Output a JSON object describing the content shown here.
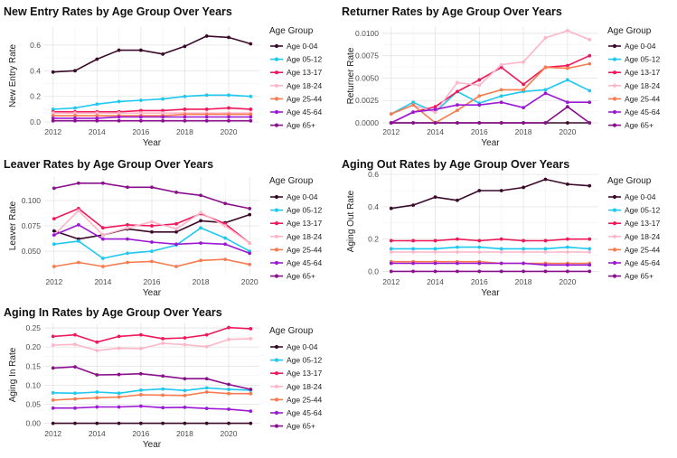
{
  "legend_title": "Age Group",
  "groups": [
    "Age 0-04",
    "Age 05-12",
    "Age 13-17",
    "Age 18-24",
    "Age 25-44",
    "Age 45-64",
    "Age 65+"
  ],
  "colors": [
    "#3b0a2a",
    "#1ec8f0",
    "#f0185a",
    "#ffb6c8",
    "#f77b4f",
    "#9b19d4",
    "#8a0f8c"
  ],
  "chart_data": [
    {
      "type": "line",
      "title": "New Entry Rates by Age Group Over Years",
      "xlabel": "Year",
      "ylabel": "New Entry Rate",
      "xlim": [
        2011.6,
        2021.4
      ],
      "ylim": [
        -0.02,
        0.74
      ],
      "xticks": [
        2012,
        2014,
        2016,
        2018,
        2020
      ],
      "yticks": [
        0.0,
        0.2,
        0.4,
        0.6
      ],
      "ytick_labels": [
        "0.0",
        "0.2",
        "0.4",
        "0.6"
      ],
      "x": [
        2012,
        2013,
        2014,
        2015,
        2016,
        2017,
        2018,
        2019,
        2020,
        2021
      ],
      "series": [
        {
          "name": "Age 0-04",
          "values": [
            0.39,
            0.4,
            0.49,
            0.56,
            0.56,
            0.53,
            0.59,
            0.67,
            0.66,
            0.61
          ]
        },
        {
          "name": "Age 05-12",
          "values": [
            0.1,
            0.11,
            0.14,
            0.16,
            0.17,
            0.18,
            0.2,
            0.21,
            0.21,
            0.2
          ]
        },
        {
          "name": "Age 13-17",
          "values": [
            0.08,
            0.08,
            0.08,
            0.08,
            0.09,
            0.09,
            0.1,
            0.1,
            0.11,
            0.1
          ]
        },
        {
          "name": "Age 18-24",
          "values": [
            0.07,
            0.07,
            0.07,
            0.07,
            0.07,
            0.07,
            0.07,
            0.07,
            0.07,
            0.07
          ]
        },
        {
          "name": "Age 25-44",
          "values": [
            0.05,
            0.05,
            0.05,
            0.05,
            0.05,
            0.05,
            0.06,
            0.06,
            0.06,
            0.06
          ]
        },
        {
          "name": "Age 45-64",
          "values": [
            0.03,
            0.03,
            0.03,
            0.04,
            0.04,
            0.04,
            0.04,
            0.04,
            0.04,
            0.04
          ]
        },
        {
          "name": "Age 65+",
          "values": [
            0.01,
            0.01,
            0.01,
            0.01,
            0.01,
            0.01,
            0.01,
            0.01,
            0.01,
            0.01
          ]
        }
      ]
    },
    {
      "type": "line",
      "title": "Returner Rates by Age Group Over Years",
      "xlabel": "Year",
      "ylabel": "Returner Rate",
      "xlim": [
        2011.6,
        2021.4
      ],
      "ylim": [
        -0.0002,
        0.0107
      ],
      "xticks": [
        2012,
        2014,
        2016,
        2018,
        2020
      ],
      "yticks": [
        0.0,
        0.0025,
        0.005,
        0.0075,
        0.01
      ],
      "ytick_labels": [
        "0.0000",
        "0.0025",
        "0.0050",
        "0.0075",
        "0.0100"
      ],
      "x": [
        2012,
        2013,
        2014,
        2015,
        2016,
        2017,
        2018,
        2019,
        2020,
        2021
      ],
      "series": [
        {
          "name": "Age 0-04",
          "values": [
            0.0,
            0.0,
            0.0,
            0.0,
            0.0,
            0.0,
            0.0,
            0.0,
            0.0,
            0.0
          ]
        },
        {
          "name": "Age 05-12",
          "values": [
            0.001,
            0.0023,
            0.0012,
            0.0035,
            0.0022,
            0.003,
            0.0035,
            0.0037,
            0.0048,
            0.0036
          ]
        },
        {
          "name": "Age 13-17",
          "values": [
            0.0,
            0.0012,
            0.0018,
            0.0035,
            0.0048,
            0.0062,
            0.0043,
            0.0062,
            0.0064,
            0.0075
          ]
        },
        {
          "name": "Age 18-24",
          "values": [
            0.001,
            0.002,
            0.0012,
            0.0045,
            0.0042,
            0.0065,
            0.0068,
            0.0095,
            0.0103,
            0.0093
          ]
        },
        {
          "name": "Age 25-44",
          "values": [
            0.001,
            0.002,
            0.0,
            0.0014,
            0.003,
            0.0037,
            0.0037,
            0.0062,
            0.0061,
            0.0066
          ]
        },
        {
          "name": "Age 45-64",
          "values": [
            0.0,
            0.0012,
            0.0015,
            0.002,
            0.002,
            0.0023,
            0.0017,
            0.0033,
            0.0023,
            0.0023
          ]
        },
        {
          "name": "Age 65+",
          "values": [
            0.0,
            0.0,
            0.0,
            0.0,
            0.0,
            0.0,
            0.0,
            0.0,
            0.0018,
            0.0
          ]
        }
      ]
    },
    {
      "type": "line",
      "title": "Leaver Rates by Age Group Over Years",
      "xlabel": "Year",
      "ylabel": "Leaver Rate",
      "xlim": [
        2011.6,
        2020.4
      ],
      "ylim": [
        0.027,
        0.123
      ],
      "xticks": [
        2012,
        2014,
        2016,
        2018,
        2020
      ],
      "yticks": [
        0.05,
        0.075,
        0.1
      ],
      "ytick_labels": [
        "0.050",
        "0.075",
        "0.100"
      ],
      "x": [
        2012,
        2013,
        2014,
        2015,
        2016,
        2017,
        2018,
        2019,
        2020
      ],
      "series": [
        {
          "name": "Age 0-04",
          "values": [
            0.07,
            0.062,
            0.066,
            0.072,
            0.069,
            0.069,
            0.08,
            0.078,
            0.086
          ]
        },
        {
          "name": "Age 05-12",
          "values": [
            0.057,
            0.06,
            0.043,
            0.048,
            0.05,
            0.056,
            0.073,
            0.063,
            0.05
          ]
        },
        {
          "name": "Age 13-17",
          "values": [
            0.082,
            0.092,
            0.073,
            0.076,
            0.075,
            0.077,
            0.087,
            0.077,
            0.058
          ]
        },
        {
          "name": "Age 18-24",
          "values": [
            0.066,
            0.09,
            0.066,
            0.073,
            0.079,
            0.072,
            0.088,
            0.075,
            0.058
          ]
        },
        {
          "name": "Age 25-44",
          "values": [
            0.035,
            0.039,
            0.035,
            0.039,
            0.04,
            0.035,
            0.041,
            0.042,
            0.037
          ]
        },
        {
          "name": "Age 45-64",
          "values": [
            0.066,
            0.076,
            0.062,
            0.062,
            0.059,
            0.057,
            0.058,
            0.057,
            0.048
          ]
        },
        {
          "name": "Age 65+",
          "values": [
            0.112,
            0.117,
            0.117,
            0.113,
            0.113,
            0.108,
            0.105,
            0.097,
            0.092
          ]
        }
      ]
    },
    {
      "type": "line",
      "title": "Aging Out Rates by Age Group Over Years",
      "xlabel": "Year",
      "ylabel": "Aging Out Rate",
      "xlim": [
        2011.6,
        2021.4
      ],
      "ylim": [
        -0.02,
        0.64
      ],
      "xticks": [
        2012,
        2014,
        2016,
        2018,
        2020
      ],
      "yticks": [
        0.0,
        0.2,
        0.4,
        0.6
      ],
      "ytick_labels": [
        "0.0",
        "0.2",
        "0.4",
        "0.6"
      ],
      "x": [
        2012,
        2013,
        2014,
        2015,
        2016,
        2017,
        2018,
        2019,
        2020,
        2021
      ],
      "series": [
        {
          "name": "Age 0-04",
          "values": [
            0.39,
            0.41,
            0.46,
            0.44,
            0.5,
            0.5,
            0.52,
            0.57,
            0.54,
            0.53
          ]
        },
        {
          "name": "Age 05-12",
          "values": [
            0.14,
            0.14,
            0.14,
            0.15,
            0.15,
            0.14,
            0.14,
            0.14,
            0.15,
            0.14
          ]
        },
        {
          "name": "Age 13-17",
          "values": [
            0.19,
            0.19,
            0.19,
            0.2,
            0.19,
            0.2,
            0.19,
            0.19,
            0.2,
            0.2
          ]
        },
        {
          "name": "Age 18-24",
          "values": [
            0.12,
            0.12,
            0.12,
            0.12,
            0.12,
            0.12,
            0.12,
            0.12,
            0.12,
            0.12
          ]
        },
        {
          "name": "Age 25-44",
          "values": [
            0.06,
            0.06,
            0.06,
            0.06,
            0.06,
            0.05,
            0.05,
            0.05,
            0.05,
            0.05
          ]
        },
        {
          "name": "Age 45-64",
          "values": [
            0.05,
            0.05,
            0.05,
            0.05,
            0.05,
            0.05,
            0.05,
            0.04,
            0.04,
            0.04
          ]
        },
        {
          "name": "Age 65+",
          "values": [
            0.0,
            0.0,
            0.0,
            0.0,
            0.0,
            0.0,
            0.0,
            0.0,
            0.0,
            0.0
          ]
        }
      ]
    },
    {
      "type": "line",
      "title": "Aging In Rates by Age Group Over Years",
      "xlabel": "Year",
      "ylabel": "Aging In Rate",
      "xlim": [
        2011.6,
        2021.4
      ],
      "ylim": [
        -0.008,
        0.262
      ],
      "xticks": [
        2012,
        2014,
        2016,
        2018,
        2020
      ],
      "yticks": [
        0.0,
        0.05,
        0.1,
        0.15,
        0.2,
        0.25
      ],
      "ytick_labels": [
        "0.00",
        "0.05",
        "0.10",
        "0.15",
        "0.20",
        "0.25"
      ],
      "x": [
        2012,
        2013,
        2014,
        2015,
        2016,
        2017,
        2018,
        2019,
        2020,
        2021
      ],
      "series": [
        {
          "name": "Age 0-04",
          "values": [
            0.0,
            0.0,
            0.0,
            0.0,
            0.0,
            0.0,
            0.0,
            0.0,
            0.0,
            0.0
          ]
        },
        {
          "name": "Age 05-12",
          "values": [
            0.08,
            0.079,
            0.082,
            0.079,
            0.087,
            0.09,
            0.086,
            0.093,
            0.089,
            0.087
          ]
        },
        {
          "name": "Age 13-17",
          "values": [
            0.228,
            0.232,
            0.213,
            0.228,
            0.232,
            0.222,
            0.224,
            0.232,
            0.251,
            0.248
          ]
        },
        {
          "name": "Age 18-24",
          "values": [
            0.205,
            0.207,
            0.191,
            0.197,
            0.196,
            0.21,
            0.206,
            0.201,
            0.22,
            0.222
          ]
        },
        {
          "name": "Age 25-44",
          "values": [
            0.061,
            0.064,
            0.067,
            0.069,
            0.075,
            0.074,
            0.073,
            0.082,
            0.078,
            0.078
          ]
        },
        {
          "name": "Age 45-64",
          "values": [
            0.04,
            0.04,
            0.043,
            0.043,
            0.045,
            0.041,
            0.042,
            0.039,
            0.037,
            0.032
          ]
        },
        {
          "name": "Age 65+",
          "values": [
            0.145,
            0.148,
            0.127,
            0.128,
            0.13,
            0.124,
            0.117,
            0.117,
            0.102,
            0.089
          ]
        }
      ]
    }
  ]
}
